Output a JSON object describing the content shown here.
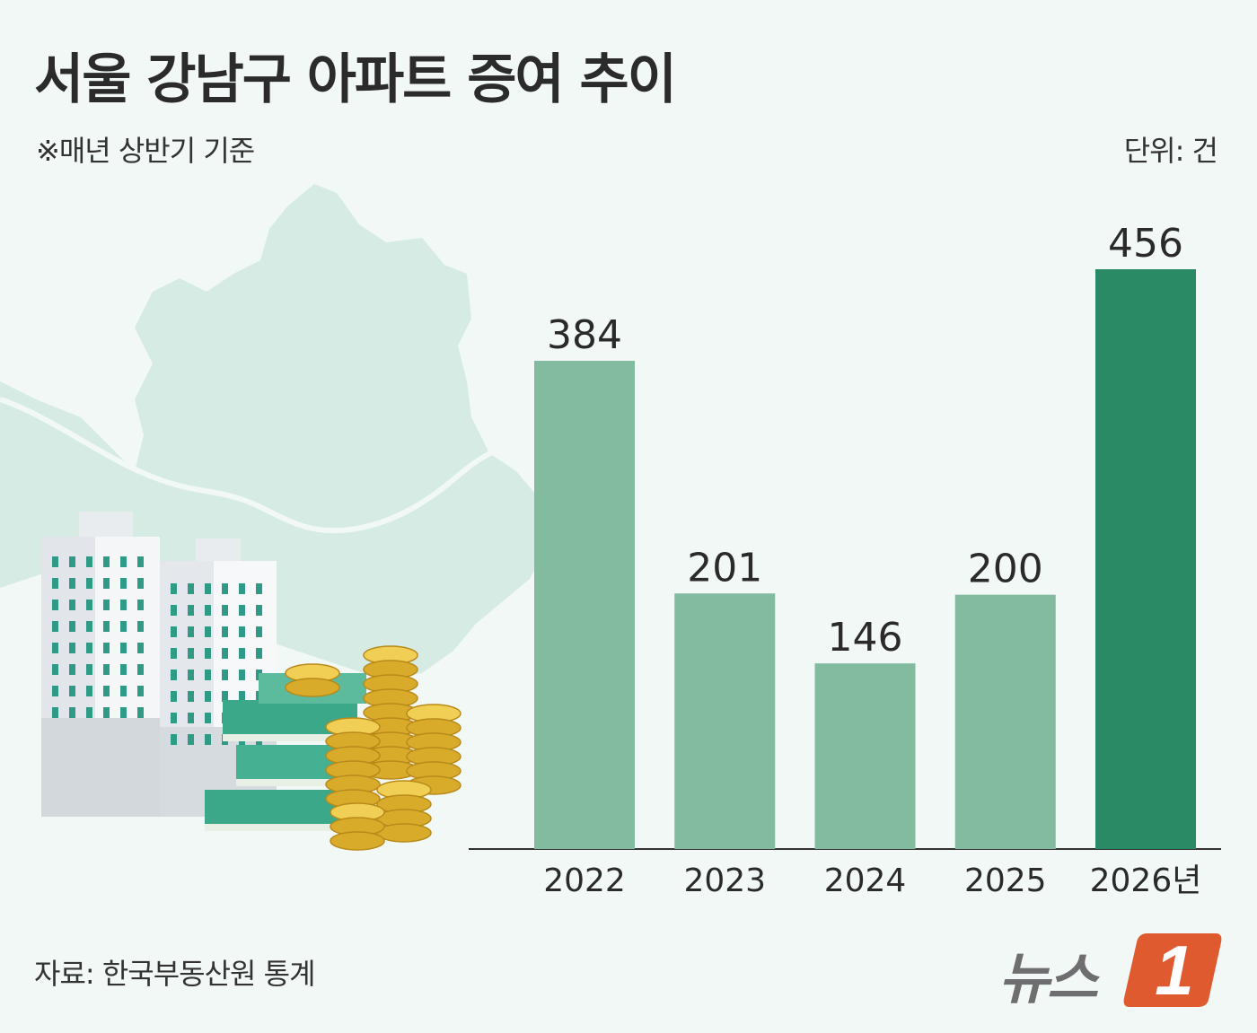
{
  "title": "서울 강남구 아파트 증여 추이",
  "subtitle": "※매년 상반기 기준",
  "unit_label": "단위: 건",
  "source": "자료: 한국부동산원 통계",
  "logo": {
    "text": "뉴스",
    "badge": "1"
  },
  "colors": {
    "bar_default": "#82bba0",
    "bar_highlight": "#2a8a66",
    "map": "#d6ebe3",
    "logo_badge": "#e05a2f"
  },
  "illustration": {
    "icon": "apartment-money-icon"
  },
  "chart_data": {
    "type": "bar",
    "categories": [
      "2022",
      "2023",
      "2024",
      "2025",
      "2026년"
    ],
    "values": [
      384,
      201,
      146,
      200,
      456
    ],
    "value_labels": [
      "384",
      "201",
      "146",
      "200",
      "456"
    ],
    "highlight_index": 4,
    "ylim": [
      0,
      456
    ],
    "grid": false
  }
}
